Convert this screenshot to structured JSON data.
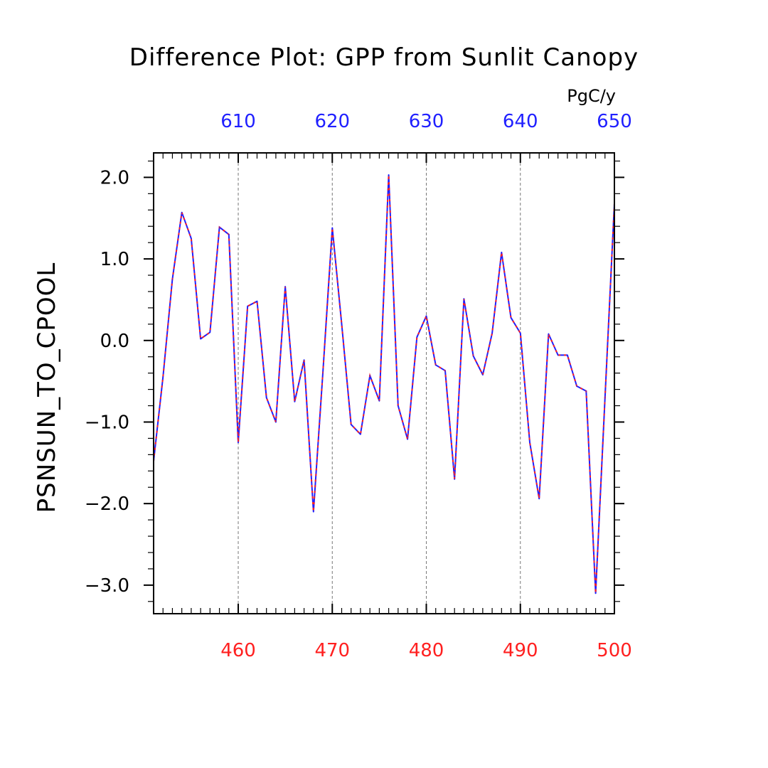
{
  "chart_data": {
    "type": "line",
    "title": "Difference Plot: GPP from Sunlit Canopy",
    "units": "PgC/y",
    "ylabel": "PSNSUN_TO_CPOOL",
    "xlabel": "",
    "xlim": [
      451,
      500
    ],
    "ylim": [
      -3.35,
      2.3
    ],
    "x_bottom_ticks": [
      460,
      470,
      480,
      490,
      500
    ],
    "x_bottom_tick_labels": [
      "460",
      "470",
      "480",
      "490",
      "500"
    ],
    "x_top_ticks": [
      610,
      620,
      630,
      640,
      650
    ],
    "x_top_tick_labels": [
      "610",
      "620",
      "630",
      "640",
      "650"
    ],
    "x_top_offset": 150,
    "y_ticks": [
      -3.0,
      -2.0,
      -1.0,
      0.0,
      1.0,
      2.0
    ],
    "y_tick_labels": [
      "−3.0",
      "−2.0",
      "−1.0",
      "0.0",
      "1.0",
      "2.0"
    ],
    "grid": "vertical dashed at labeled x ticks",
    "colors": {
      "bottom_axis": "#ff2020",
      "top_axis": "#2020ff",
      "series_solid": "#2020ff",
      "series_dashed": "#ff2020"
    },
    "x": [
      451,
      452,
      453,
      454,
      455,
      456,
      457,
      458,
      459,
      460,
      461,
      462,
      463,
      464,
      465,
      466,
      467,
      468,
      469,
      470,
      471,
      472,
      473,
      474,
      475,
      476,
      477,
      478,
      479,
      480,
      481,
      482,
      483,
      484,
      485,
      486,
      487,
      488,
      489,
      490,
      491,
      492,
      493,
      494,
      495,
      496,
      497,
      498,
      499,
      500
    ],
    "series": [
      {
        "values": [
          -1.48,
          -0.45,
          0.75,
          1.57,
          1.25,
          0.02,
          0.1,
          1.39,
          1.3,
          -1.25,
          0.42,
          0.48,
          -0.7,
          -1.0,
          0.66,
          -0.75,
          -0.24,
          -2.1,
          -0.4,
          1.38,
          0.2,
          -1.03,
          -1.15,
          -0.43,
          -0.74,
          2.03,
          -0.8,
          -1.21,
          0.04,
          0.3,
          -0.3,
          -0.37,
          -1.7,
          0.51,
          -0.19,
          -0.42,
          0.09,
          1.08,
          0.28,
          0.09,
          -1.25,
          -1.94,
          0.08,
          -0.18,
          -0.18,
          -0.56,
          -0.62,
          -3.1,
          -0.7,
          1.68
        ]
      }
    ]
  }
}
